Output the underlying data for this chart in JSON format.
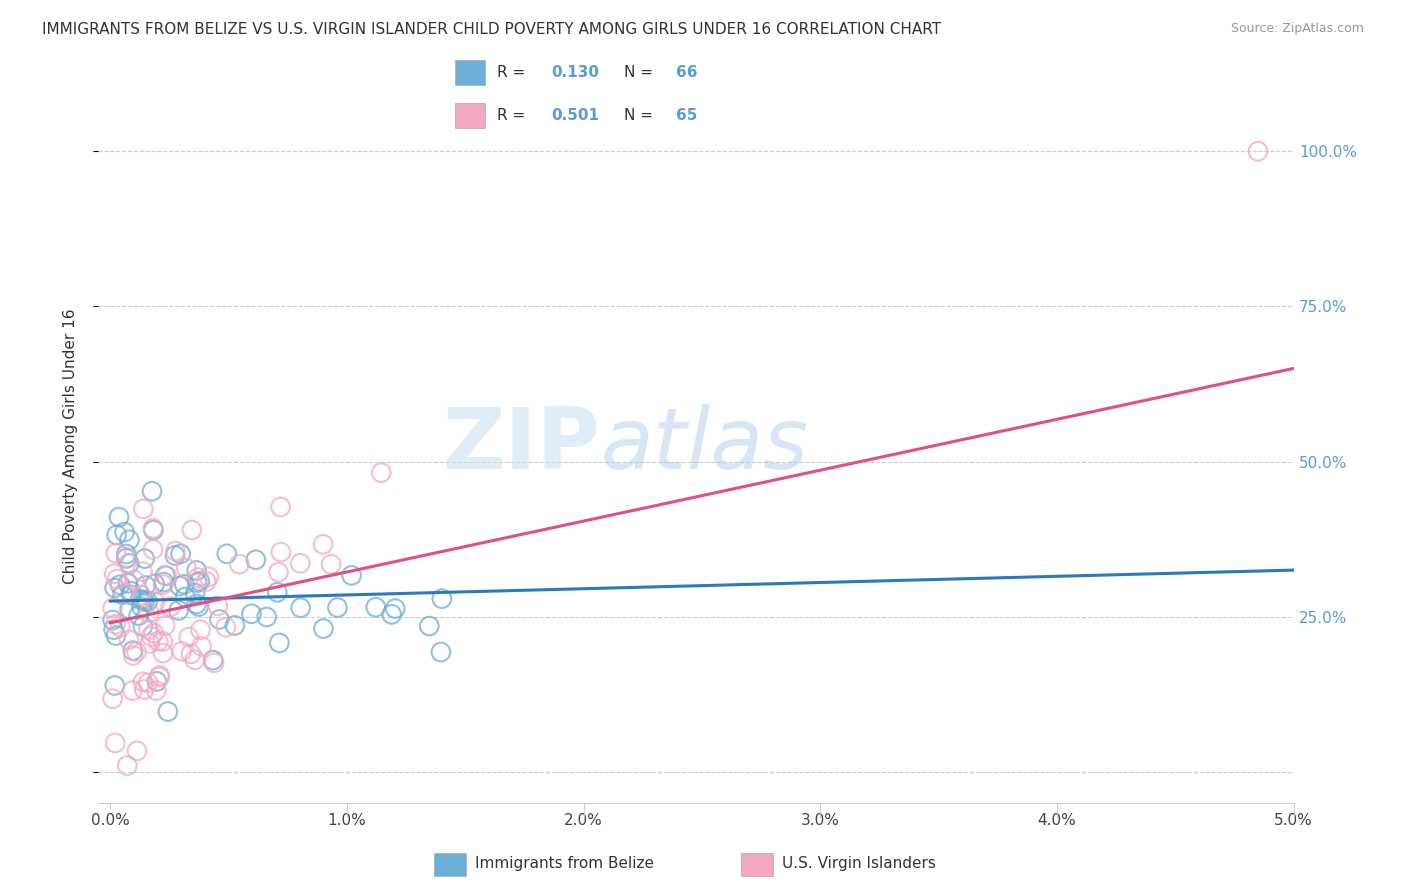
{
  "title": "IMMIGRANTS FROM BELIZE VS U.S. VIRGIN ISLANDER CHILD POVERTY AMONG GIRLS UNDER 16 CORRELATION CHART",
  "source": "Source: ZipAtlas.com",
  "ylabel": "Child Poverty Among Girls Under 16",
  "xlim": [
    -0.0005,
    0.05
  ],
  "ylim": [
    -0.05,
    1.1
  ],
  "xticks": [
    0.0,
    0.01,
    0.02,
    0.03,
    0.04,
    0.05
  ],
  "xticklabels": [
    "0.0%",
    "1.0%",
    "2.0%",
    "3.0%",
    "4.0%",
    "5.0%"
  ],
  "ytick_positions": [
    0.0,
    0.25,
    0.5,
    0.75,
    1.0
  ],
  "yticklabels": [
    "",
    "25.0%",
    "50.0%",
    "75.0%",
    "100.0%"
  ],
  "blue_color": "#6baed6",
  "pink_color": "#f4a8c0",
  "blue_line_color": "#2b7bba",
  "pink_line_color": "#e05080",
  "legend_R_blue": "R = 0.130",
  "legend_N_blue": "N = 66",
  "legend_R_pink": "R = 0.501",
  "legend_N_pink": "N = 65",
  "legend_text_color": "#5b9bd5",
  "watermark_zip": "ZIP",
  "watermark_atlas": "atlas",
  "blue_trend_x0": 0.0,
  "blue_trend_y0": 0.275,
  "blue_trend_x1": 0.05,
  "blue_trend_y1": 0.325,
  "pink_trend_x0": 0.0,
  "pink_trend_y0": 0.24,
  "pink_trend_x1": 0.05,
  "pink_trend_y1": 0.65
}
